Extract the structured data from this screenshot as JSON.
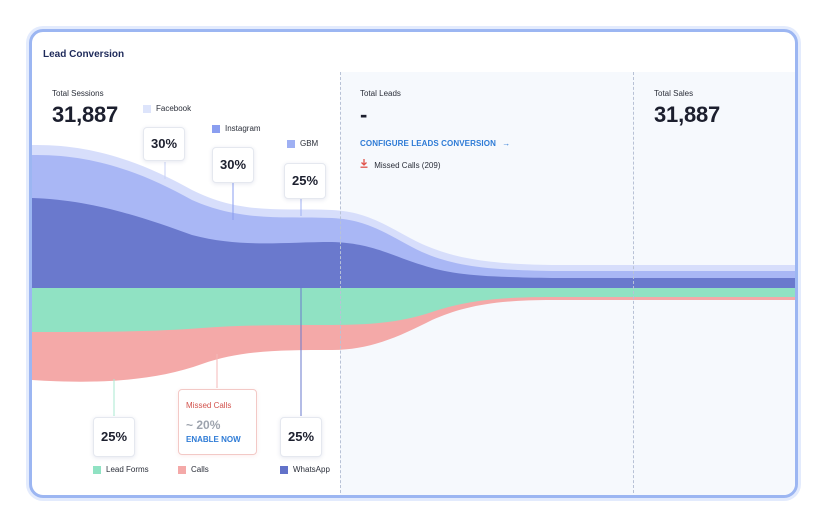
{
  "card": {
    "title": "Lead Conversion"
  },
  "sessions": {
    "label": "Total Sessions",
    "value": "31,887"
  },
  "leads": {
    "label": "Total Leads",
    "value": "-",
    "configure_link": "CONFIGURE LEADS CONVERSION",
    "configure_arrow": "→",
    "missed_calls": "Missed Calls (209)"
  },
  "sales": {
    "label": "Total Sales",
    "value": "31,887"
  },
  "sources_top": [
    {
      "name": "Facebook",
      "pct": "30%",
      "color": "#dde4fb"
    },
    {
      "name": "Instagram",
      "pct": "30%",
      "color": "#8a9ef0"
    },
    {
      "name": "GBM",
      "pct": "25%",
      "color": "#9fb0f3"
    }
  ],
  "sources_bottom": [
    {
      "name": "Lead Forms",
      "pct": "25%",
      "color": "#90e2c3"
    },
    {
      "name": "Calls",
      "color": "#f4a9a8"
    },
    {
      "name": "WhatsApp",
      "pct": "25%",
      "color": "#6272c9"
    }
  ],
  "missed_card": {
    "title": "Missed Calls",
    "approx": "~ 20%",
    "action": "ENABLE NOW"
  },
  "colors": {
    "facebook_band": "#d7defb",
    "instagram_band": "#a9b7f5",
    "whatsapp_band": "#6a79cd",
    "leadforms_band": "#90e2c3",
    "calls_band": "#f4a9a8",
    "accent_link": "#2e7bd6",
    "card_border": "#9cb6f2"
  }
}
